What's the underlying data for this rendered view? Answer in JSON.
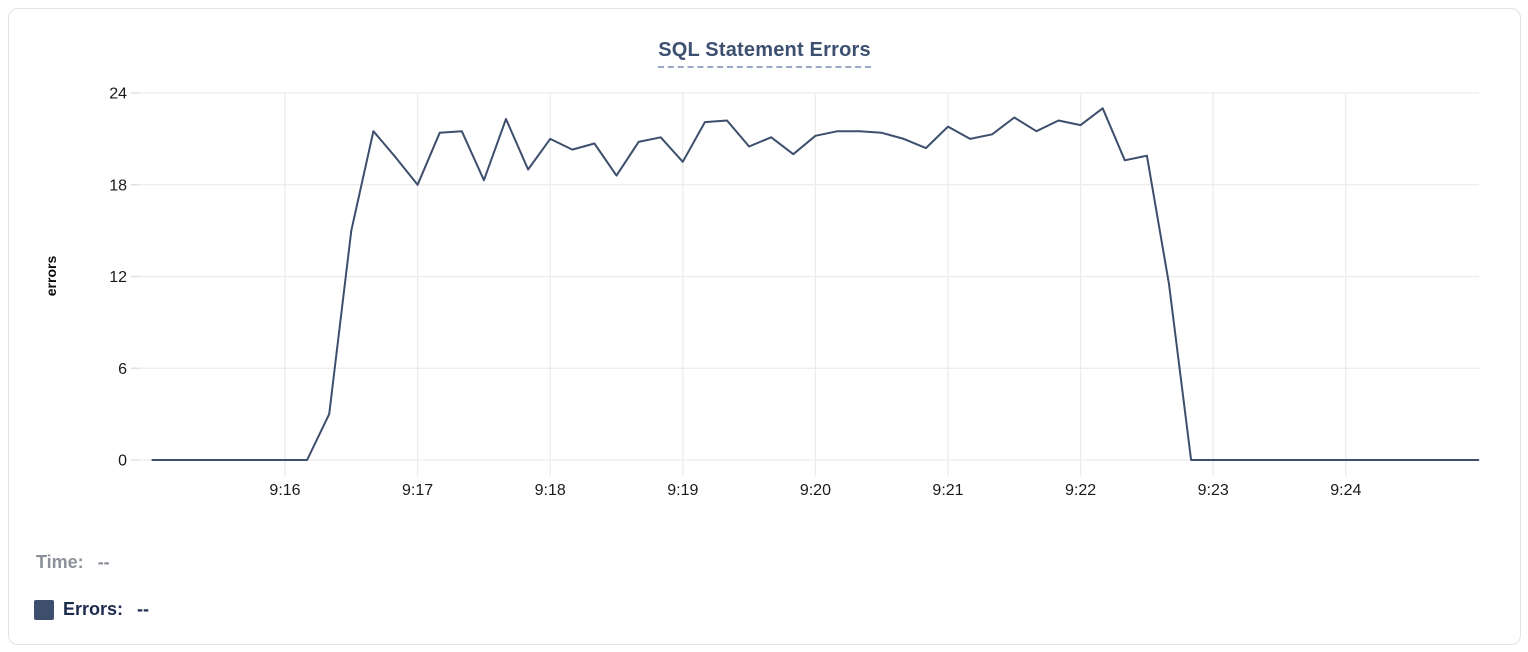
{
  "chart_data": {
    "type": "line",
    "title": "SQL Statement Errors",
    "ylabel": "errors",
    "series_name": "Errors",
    "line_color": "#3e4e6d",
    "grid": true,
    "legend_position": "bottom-left",
    "ylim": [
      0,
      24
    ],
    "y_ticks": [
      0,
      6,
      12,
      18,
      24
    ],
    "x_tick_labels": [
      "9:16",
      "9:17",
      "9:18",
      "9:19",
      "9:20",
      "9:21",
      "9:22",
      "9:23",
      "9:24"
    ],
    "x_interval_seconds": 10,
    "times": [
      "9:15:00",
      "9:15:10",
      "9:15:20",
      "9:15:30",
      "9:15:40",
      "9:15:50",
      "9:16:00",
      "9:16:10",
      "9:16:20",
      "9:16:30",
      "9:16:40",
      "9:16:50",
      "9:17:00",
      "9:17:10",
      "9:17:20",
      "9:17:30",
      "9:17:40",
      "9:17:50",
      "9:18:00",
      "9:18:10",
      "9:18:20",
      "9:18:30",
      "9:18:40",
      "9:18:50",
      "9:19:00",
      "9:19:10",
      "9:19:20",
      "9:19:30",
      "9:19:40",
      "9:19:50",
      "9:20:00",
      "9:20:10",
      "9:20:20",
      "9:20:30",
      "9:20:40",
      "9:20:50",
      "9:21:00",
      "9:21:10",
      "9:21:20",
      "9:21:30",
      "9:21:40",
      "9:21:50",
      "9:22:00",
      "9:22:10",
      "9:22:20",
      "9:22:30",
      "9:22:40",
      "9:22:50",
      "9:23:00",
      "9:23:10",
      "9:23:20",
      "9:23:30",
      "9:23:40",
      "9:23:50",
      "9:24:00",
      "9:24:10",
      "9:24:20",
      "9:24:30",
      "9:24:40",
      "9:24:50",
      "9:25:00"
    ],
    "values": [
      0,
      0,
      0,
      0,
      0,
      0,
      0,
      0,
      3,
      15,
      21.5,
      19.8,
      18,
      21.4,
      21.5,
      18.3,
      22.3,
      19,
      21,
      20.3,
      20.7,
      18.6,
      20.8,
      21.1,
      19.5,
      22.1,
      22.2,
      20.5,
      21.1,
      20,
      21.2,
      21.5,
      21.5,
      21.4,
      21,
      20.4,
      21.8,
      21,
      21.3,
      22.4,
      21.5,
      22.2,
      21.9,
      23,
      19.6,
      19.9,
      11.5,
      0,
      0,
      0,
      0,
      0,
      0,
      0,
      0,
      0,
      0,
      0,
      0,
      0,
      0
    ]
  },
  "readout": {
    "time_label": "Time:",
    "time_value": "--",
    "errors_label": "Errors:",
    "errors_value": "--",
    "swatch_color": "#3e4f6e"
  },
  "colors": {
    "title": "#3d5070",
    "title_underline": "#9aa9c5",
    "grid": "#ececec",
    "axis_text": "#1a1a1a",
    "time_text": "#8b909a",
    "errors_text": "#1c2b4d",
    "card_border": "#e2e2e2"
  }
}
